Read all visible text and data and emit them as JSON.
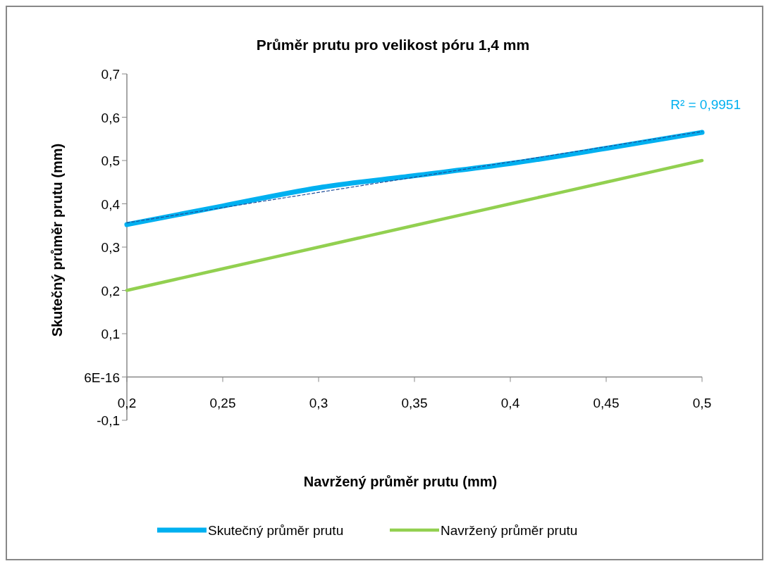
{
  "chart_data": {
    "type": "line",
    "title": "Průměr prutu pro velikost póru 1,4 mm",
    "xlabel": "Navržený průměr prutu (mm)",
    "ylabel": "Skutečný průměr prutu (mm)",
    "x": [
      0.2,
      0.25,
      0.3,
      0.35,
      0.4,
      0.45,
      0.5
    ],
    "series": [
      {
        "name": "Skutečný průměr prutu",
        "color": "#00b0f0",
        "values": [
          0.352,
          0.395,
          0.437,
          0.465,
          0.493,
          0.528,
          0.565
        ]
      },
      {
        "name": "Navržený průměr prutu",
        "color": "#92d050",
        "values": [
          0.2,
          0.25,
          0.3,
          0.35,
          0.4,
          0.45,
          0.5
        ]
      },
      {
        "type": "line",
        "color": "#1f4e9a",
        "line_style": "dashed",
        "x": [
          0.2,
          0.5
        ],
        "values": [
          0.356,
          0.567
        ]
      }
    ],
    "annotations": [
      "R² = 0,9951"
    ],
    "xlim": [
      0.2,
      0.5
    ],
    "ylim": [
      -0.1,
      0.7
    ],
    "xticks": [
      {
        "value": 0.2,
        "label": "0,2"
      },
      {
        "value": 0.25,
        "label": "0,25"
      },
      {
        "value": 0.3,
        "label": "0,3"
      },
      {
        "value": 0.35,
        "label": "0,35"
      },
      {
        "value": 0.4,
        "label": "0,4"
      },
      {
        "value": 0.45,
        "label": "0,45"
      },
      {
        "value": 0.5,
        "label": "0,5"
      }
    ],
    "yticks": [
      {
        "value": -0.1,
        "label": "-0,1"
      },
      {
        "value": 0,
        "label": "6E-16"
      },
      {
        "value": 0.1,
        "label": "0,1"
      },
      {
        "value": 0.2,
        "label": "0,2"
      },
      {
        "value": 0.3,
        "label": "0,3"
      },
      {
        "value": 0.4,
        "label": "0,4"
      },
      {
        "value": 0.5,
        "label": "0,5"
      },
      {
        "value": 0.6,
        "label": "0,6"
      },
      {
        "value": 0.7,
        "label": "0,7"
      }
    ],
    "grid": false,
    "legend": "bottom",
    "marker": "none",
    "line_style": "solid"
  }
}
